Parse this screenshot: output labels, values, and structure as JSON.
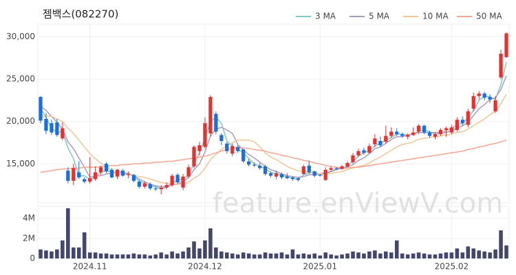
{
  "watermark": "feature.enViewV.com",
  "chart_data": [
    {
      "type": "candlestick",
      "title": "젬백스(082270)",
      "up_color": "#e8312f",
      "down_color": "#1a6fe0",
      "grid": true,
      "ylim": [
        10400,
        31500
      ],
      "yticks": [
        {
          "value": 15000,
          "label": "15,000"
        },
        {
          "value": 20000,
          "label": "20,000"
        },
        {
          "value": 25000,
          "label": "25,000"
        },
        {
          "value": 30000,
          "label": "30,000"
        }
      ],
      "open": [
        22900,
        20300,
        19800,
        19900,
        18000,
        14200,
        13000,
        14000,
        13200,
        12900,
        13200,
        14000,
        15000,
        14300,
        13500,
        14200,
        13700,
        13700,
        12900,
        12300,
        12600,
        12100,
        12000,
        12200,
        12500,
        13700,
        12200,
        13500,
        14700,
        16500,
        17000,
        18600,
        20900,
        18400,
        17400,
        16200,
        17000,
        16700,
        15300,
        14900,
        14800,
        14700,
        13900,
        13500,
        13800,
        13500,
        13400,
        13300,
        13800,
        14800,
        14100,
        13700,
        13100,
        14300,
        14500,
        14400,
        14700,
        15200,
        16000,
        16600,
        16300,
        17300,
        17700,
        17600,
        18300,
        18800,
        18500,
        18200,
        18400,
        18800,
        19500,
        18700,
        18200,
        18500,
        19000,
        18700,
        19000,
        20200,
        19600,
        21500,
        23000,
        23300,
        22900,
        21200,
        25200,
        27600
      ],
      "high": [
        23000,
        21000,
        20200,
        20300,
        19900,
        14600,
        15000,
        15300,
        13400,
        15800,
        14700,
        14800,
        15200,
        14500,
        14400,
        14400,
        14100,
        13800,
        13100,
        12900,
        12800,
        12300,
        12500,
        12800,
        13800,
        13900,
        13800,
        14900,
        17200,
        17600,
        20500,
        23100,
        21200,
        18600,
        17600,
        17400,
        17200,
        16800,
        15600,
        15200,
        15100,
        14900,
        14100,
        14200,
        14000,
        13900,
        13500,
        13400,
        14900,
        15400,
        14200,
        13800,
        14600,
        14700,
        14600,
        14900,
        15300,
        16300,
        16800,
        16900,
        17400,
        18500,
        18200,
        19500,
        19300,
        19200,
        18700,
        18600,
        19300,
        19700,
        19600,
        18900,
        18700,
        19200,
        19400,
        19600,
        20500,
        20600,
        21500,
        23400,
        23600,
        23500,
        23200,
        23000,
        28500,
        30500
      ],
      "low": [
        19800,
        18500,
        18400,
        18200,
        17800,
        12700,
        12500,
        13200,
        12700,
        12700,
        13000,
        13700,
        13900,
        13300,
        13200,
        13500,
        13300,
        12800,
        12100,
        12100,
        11900,
        11800,
        11400,
        12000,
        12300,
        12600,
        11900,
        13300,
        14500,
        16000,
        16800,
        18200,
        18500,
        17200,
        16200,
        15900,
        16300,
        15100,
        14700,
        14600,
        14300,
        13600,
        13400,
        13200,
        13200,
        13200,
        13000,
        12900,
        13700,
        13800,
        13400,
        13500,
        13000,
        14100,
        14300,
        14300,
        14600,
        15000,
        15800,
        16100,
        16200,
        17000,
        17000,
        17400,
        18100,
        18300,
        18100,
        17900,
        18300,
        18500,
        18500,
        18100,
        17900,
        18300,
        18200,
        18500,
        18800,
        19500,
        19300,
        21200,
        22600,
        22500,
        22200,
        21000,
        25000,
        27500
      ],
      "close": [
        20100,
        18900,
        18700,
        18400,
        19200,
        13000,
        14500,
        13400,
        12900,
        13300,
        14000,
        14600,
        14100,
        13400,
        14300,
        13600,
        13800,
        13000,
        12300,
        12700,
        12100,
        12000,
        12200,
        12500,
        13600,
        12800,
        13500,
        14600,
        17000,
        17200,
        19800,
        22900,
        18800,
        17700,
        16500,
        17100,
        16500,
        15300,
        14900,
        14800,
        14500,
        13800,
        13600,
        13900,
        13400,
        13300,
        13200,
        13100,
        14700,
        14000,
        13600,
        13600,
        14300,
        14500,
        14400,
        14700,
        15100,
        16000,
        16500,
        16300,
        17100,
        18000,
        17200,
        18300,
        18800,
        18500,
        18300,
        18400,
        18700,
        19500,
        18700,
        18300,
        18500,
        19000,
        19200,
        19300,
        20200,
        19800,
        21200,
        23000,
        23300,
        22800,
        22600,
        22500,
        28000,
        30400
      ],
      "series": [
        {
          "name": "3 MA",
          "color": "#7ec8c8",
          "values": [
            21500,
            20500,
            19200,
            18700,
            18800,
            16900,
            15600,
            13600,
            13600,
            13200,
            13400,
            14000,
            14200,
            14000,
            13900,
            13800,
            13900,
            13500,
            13000,
            12700,
            12400,
            12300,
            12100,
            12200,
            12800,
            13000,
            13300,
            13600,
            15000,
            16300,
            18000,
            20000,
            20500,
            19800,
            17700,
            17100,
            16700,
            16300,
            15600,
            15000,
            14700,
            14400,
            14000,
            13800,
            13600,
            13500,
            13300,
            13200,
            13700,
            13900,
            14100,
            13700,
            13800,
            14100,
            14400,
            14500,
            14700,
            15300,
            15900,
            16300,
            16600,
            17100,
            17400,
            17800,
            18100,
            18500,
            18500,
            18400,
            18500,
            18900,
            19000,
            18800,
            18500,
            18600,
            18900,
            19200,
            19600,
            19800,
            20400,
            21300,
            22500,
            23000,
            22900,
            22600,
            24400,
            27000
          ]
        },
        {
          "name": "5 MA",
          "color": "#a99bc1",
          "values": [
            21800,
            21300,
            20600,
            19900,
            19100,
            17600,
            16800,
            15700,
            14600,
            13400,
            13600,
            13600,
            13800,
            13900,
            14100,
            14000,
            13800,
            13600,
            13200,
            12900,
            12600,
            12400,
            12300,
            12300,
            12500,
            12600,
            12900,
            13400,
            14300,
            15000,
            16400,
            18300,
            19100,
            19300,
            19000,
            18600,
            17300,
            16600,
            16100,
            15700,
            15200,
            14700,
            14300,
            14100,
            13800,
            13600,
            13500,
            13400,
            13500,
            13700,
            13700,
            13800,
            14000,
            14100,
            14300,
            14500,
            14600,
            14900,
            15400,
            15700,
            16200,
            16800,
            17000,
            17400,
            17900,
            18200,
            18200,
            18400,
            18500,
            18700,
            18700,
            18700,
            18700,
            18700,
            18700,
            18900,
            19200,
            19500,
            19900,
            20700,
            21500,
            22000,
            22600,
            22800,
            23800,
            25400
          ]
        },
        {
          "name": "10 MA",
          "color": "#f4c592",
          "values": [
            20500,
            20700,
            20600,
            20300,
            20000,
            19200,
            18600,
            17800,
            17000,
            16200,
            15600,
            15100,
            14700,
            14200,
            13800,
            13800,
            13700,
            13600,
            13500,
            13400,
            13200,
            13000,
            12800,
            12700,
            12600,
            12600,
            12600,
            12800,
            13300,
            13700,
            14500,
            15500,
            16100,
            16700,
            17100,
            17500,
            17800,
            17800,
            17800,
            17600,
            17000,
            16300,
            15800,
            15500,
            15100,
            14700,
            14400,
            14200,
            14100,
            14000,
            13900,
            13800,
            13800,
            13900,
            14000,
            14100,
            14300,
            14500,
            14700,
            14800,
            15100,
            15500,
            15800,
            16200,
            16600,
            17000,
            17300,
            17400,
            17600,
            17900,
            18000,
            18100,
            18200,
            18300,
            18400,
            18500,
            18700,
            18800,
            19100,
            19500,
            19900,
            20300,
            20800,
            21200,
            22100,
            23200
          ]
        },
        {
          "name": "50 MA",
          "color": "#f4a58f",
          "values": [
            14000,
            14100,
            14200,
            14300,
            14400,
            14400,
            14500,
            14500,
            14600,
            14600,
            14600,
            14700,
            14700,
            14800,
            14800,
            14900,
            14900,
            15000,
            15000,
            15100,
            15100,
            15200,
            15200,
            15300,
            15300,
            15400,
            15500,
            15600,
            15700,
            15800,
            15900,
            16100,
            16300,
            16500,
            16700,
            16800,
            16900,
            16900,
            16800,
            16700,
            16600,
            16500,
            16300,
            16200,
            16000,
            15900,
            15700,
            15600,
            15400,
            15300,
            15100,
            15000,
            14800,
            14700,
            14600,
            14500,
            14500,
            14600,
            14600,
            14700,
            14800,
            14900,
            15000,
            15100,
            15200,
            15300,
            15400,
            15500,
            15600,
            15700,
            15800,
            15900,
            16000,
            16100,
            16200,
            16300,
            16400,
            16500,
            16700,
            16800,
            17000,
            17100,
            17300,
            17400,
            17600,
            17800
          ]
        }
      ]
    },
    {
      "type": "bar",
      "color": "#45466e",
      "ylim": [
        0,
        5200000
      ],
      "yticks": [
        0,
        {
          "value": 2000000,
          "label": "2M"
        },
        {
          "value": 4000000,
          "label": "4M"
        }
      ],
      "categories": [
        null,
        null,
        null,
        null,
        null,
        null,
        null,
        null,
        null,
        "2024.11",
        null,
        null,
        null,
        null,
        null,
        null,
        null,
        null,
        null,
        null,
        null,
        null,
        null,
        null,
        null,
        null,
        null,
        null,
        null,
        null,
        "2024.12",
        null,
        null,
        null,
        null,
        null,
        null,
        null,
        null,
        null,
        null,
        null,
        null,
        null,
        null,
        null,
        null,
        null,
        null,
        null,
        null,
        "2025.01",
        null,
        null,
        null,
        null,
        null,
        null,
        null,
        null,
        null,
        null,
        null,
        null,
        null,
        null,
        null,
        null,
        null,
        null,
        null,
        null,
        null,
        null,
        null,
        "2025.02",
        null,
        null,
        null,
        null,
        null,
        null,
        null,
        null,
        null,
        null
      ],
      "values": [
        900000,
        800000,
        700000,
        900000,
        1800000,
        5000000,
        1100000,
        1100000,
        2600000,
        600000,
        600000,
        500000,
        500000,
        400000,
        400000,
        400000,
        400000,
        500000,
        400000,
        400000,
        300000,
        400000,
        600000,
        400000,
        700000,
        500000,
        700000,
        1100000,
        1700000,
        1000000,
        1800000,
        3000000,
        1100000,
        700000,
        600000,
        500000,
        400000,
        600000,
        500000,
        400000,
        400000,
        600000,
        500000,
        500000,
        600000,
        400000,
        900000,
        400000,
        500000,
        400000,
        500000,
        300000,
        600000,
        400000,
        300000,
        400000,
        500000,
        700000,
        600000,
        500000,
        700000,
        800000,
        500000,
        700000,
        600000,
        1800000,
        500000,
        400000,
        500000,
        600000,
        500000,
        400000,
        400000,
        500000,
        600000,
        600000,
        1000000,
        600000,
        1200000,
        1000000,
        800000,
        700000,
        600000,
        900000,
        2800000,
        1300000
      ]
    }
  ]
}
